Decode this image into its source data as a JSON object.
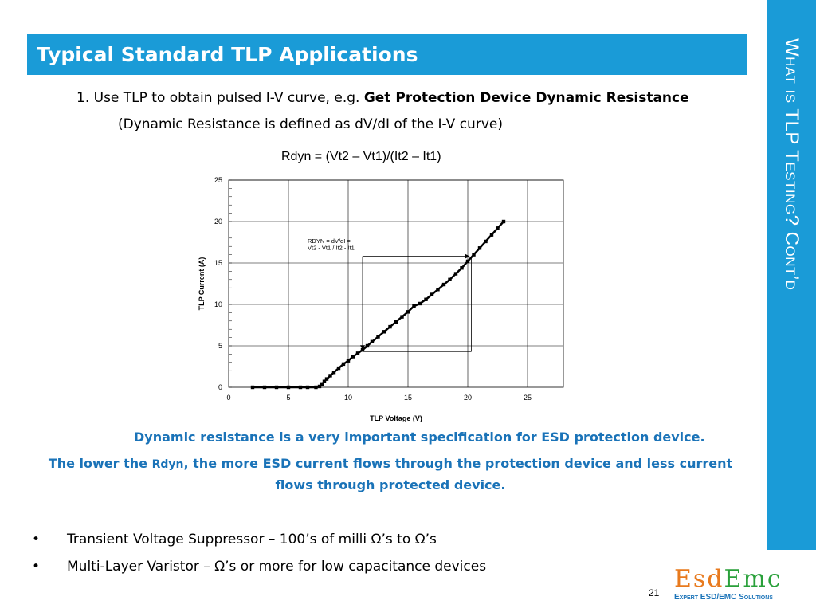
{
  "slide": {
    "title": "Typical Standard TLP Applications",
    "side_title": "What is TLP Testing? Cont’d",
    "line1_prefix": "1. Use TLP to obtain pulsed I-V curve, e.g. ",
    "line1_bold": "Get Protection Device Dynamic Resistance",
    "line2": "(Dynamic Resistance is defined as dV/dI of the I-V curve)",
    "formula": "Rdyn = (Vt2 – Vt1)/(It2 – It1)",
    "note1": "Dynamic resistance is a very important specification for ESD protection device.",
    "note2_a": "The lower the ",
    "note2_rdyn": "Rdyn",
    "note2_b": ", the more ESD current flows through the protection device and less current flows through protected device.",
    "bullets": [
      "Transient Voltage Suppressor – 100’s of milli Ω’s to Ω’s",
      "Multi-Layer Varistor – Ω’s or more for low capacitance devices"
    ],
    "bullet_symbol": "•",
    "page_number": "21",
    "logo_part1": "Esd",
    "logo_part2": "Emc",
    "logo_tagline": "Expert ESD/EMC Solutions"
  },
  "colors": {
    "accent": "#1a9bd7",
    "note_text": "#1a73b8",
    "logo_orange": "#e87a1e",
    "logo_green": "#29a03a"
  },
  "chart_data": {
    "type": "scatter",
    "xlabel": "TLP Voltage (V)",
    "ylabel": "TLP Current (A)",
    "xlim": [
      0,
      28
    ],
    "ylim": [
      0,
      25
    ],
    "x_ticks": [
      "0",
      "5",
      "10",
      "15",
      "20",
      "25"
    ],
    "y_ticks": [
      "0",
      "5",
      "10",
      "15",
      "20",
      "25"
    ],
    "grid": true,
    "annotation_line1": "RDYN = dV/dI =",
    "annotation_line2": "Vt2 - Vt1 / It2 - It1",
    "series": [
      {
        "x": [
          2.0,
          3.0,
          4.0,
          5.0,
          6.0,
          6.6,
          7.3,
          7.6,
          7.8,
          8.0,
          8.2,
          8.5,
          8.8,
          9.2,
          9.6,
          10.0,
          10.4,
          10.8,
          11.2,
          11.6,
          12.0,
          12.5,
          13.0,
          13.5,
          14.0,
          14.5,
          15.0,
          15.5,
          16.0,
          16.5,
          17.0,
          17.5,
          18.0,
          18.5,
          19.0,
          19.5,
          20.0,
          20.5,
          21.0,
          21.5,
          22.0,
          22.5,
          23.0
        ],
        "y": [
          0,
          0,
          0,
          0,
          0,
          0,
          0,
          0.1,
          0.4,
          0.7,
          1.0,
          1.4,
          1.8,
          2.3,
          2.8,
          3.2,
          3.7,
          4.1,
          4.5,
          5.0,
          5.5,
          6.1,
          6.7,
          7.3,
          7.9,
          8.5,
          9.1,
          9.8,
          10.1,
          10.6,
          11.2,
          11.8,
          12.4,
          13.0,
          13.7,
          14.4,
          15.2,
          16.0,
          16.8,
          17.6,
          18.4,
          19.2,
          20.0
        ]
      }
    ],
    "marker_points": {
      "p1": {
        "x": 11.2,
        "y": 4.3
      },
      "p2": {
        "x": 20.3,
        "y": 15.8
      }
    }
  }
}
